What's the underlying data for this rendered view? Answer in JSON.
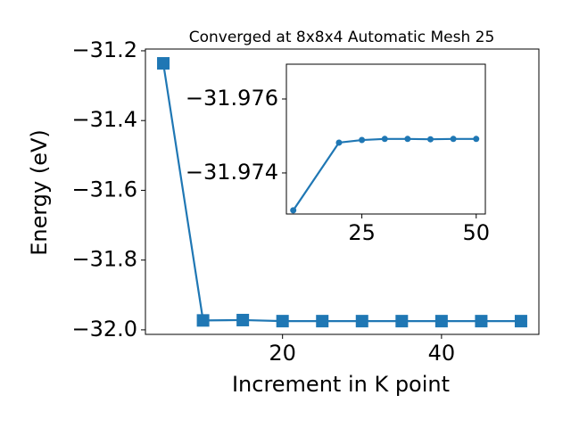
{
  "chart_data": [
    {
      "type": "line",
      "title": "Converged at 8x8x4 Automatic Mesh 25",
      "x_label": "Increment in K point",
      "y_label": "Energy (eV)",
      "x": [
        5,
        10,
        15,
        20,
        25,
        30,
        35,
        40,
        45,
        50
      ],
      "series": [
        {
          "color": "#1f77b4",
          "marker": "square",
          "values": [
            -31.236,
            -31.973,
            -31.972,
            -31.975,
            -31.975,
            -31.975,
            -31.975,
            -31.975,
            -31.975,
            -31.975
          ]
        }
      ],
      "xlim": [
        2.75,
        52.25
      ],
      "ylim": [
        -32.013,
        -31.195
      ],
      "xticks": [
        20,
        40
      ],
      "yticks": [
        {
          "value": -31.2,
          "label": "−31.2"
        },
        {
          "value": -31.4,
          "label": "−31.4"
        },
        {
          "value": -31.6,
          "label": "−31.6"
        },
        {
          "value": -31.8,
          "label": "−31.8"
        },
        {
          "value": -32.0,
          "label": "−32.0"
        }
      ]
    },
    {
      "type": "line",
      "x": [
        10,
        20,
        25,
        30,
        35,
        40,
        45,
        50
      ],
      "series": [
        {
          "color": "#1f77b4",
          "marker": "circle",
          "values": [
            -31.97299,
            -31.97482,
            -31.97489,
            -31.97492,
            -31.97492,
            -31.97491,
            -31.97492,
            -31.97492
          ]
        }
      ],
      "xlim": [
        8.5,
        52
      ],
      "ylim": [
        -31.97289,
        -31.97694
      ],
      "xticks": [
        25,
        50
      ],
      "yticks": [
        {
          "value": -31.976,
          "label": "−31.976"
        },
        {
          "value": -31.974,
          "label": "−31.974"
        }
      ]
    }
  ]
}
